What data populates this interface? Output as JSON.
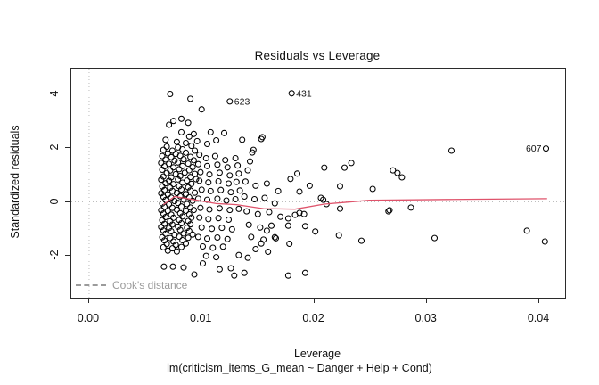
{
  "colors": {
    "point_stroke": "#000000",
    "smooth_line": "#DF536B",
    "ref_line": "#bdbdbd",
    "legend_gray": "#9b9b9b",
    "axis": "#2b2b2b"
  },
  "legend": {
    "label": "Cook's distance"
  },
  "chart_data": {
    "type": "scatter",
    "title": "Residuals vs Leverage",
    "xlabel": "Leverage",
    "sublabel": "lm(criticism_items_G_mean ~ Danger + Help + Cond)",
    "ylabel": "Standardized residuals",
    "xlim": [
      -0.00158,
      0.0423
    ],
    "ylim": [
      -3.55,
      4.94
    ],
    "x_ticks": [
      0,
      0.01,
      0.02,
      0.03,
      0.04
    ],
    "x_tick_labels": [
      "0.00",
      "0.01",
      "0.02",
      "0.03",
      "0.04"
    ],
    "y_ticks": [
      -2,
      0,
      2,
      4
    ],
    "y_tick_labels": [
      "-2",
      "0",
      "2",
      "4"
    ],
    "grid": false,
    "legend_position": "bottom-left-inside",
    "ref_lines": {
      "h": 0,
      "v": 0
    },
    "smooth_line": {
      "name": "loess-smooth",
      "points": [
        [
          0.0066,
          -0.1
        ],
        [
          0.0076,
          0.2
        ],
        [
          0.0092,
          0.09
        ],
        [
          0.0113,
          -0.06
        ],
        [
          0.0131,
          -0.1
        ],
        [
          0.0155,
          -0.25
        ],
        [
          0.0183,
          -0.27
        ],
        [
          0.0209,
          -0.08
        ],
        [
          0.0249,
          0.06
        ],
        [
          0.0318,
          0.09
        ],
        [
          0.0407,
          0.12
        ]
      ]
    },
    "labeled_points": [
      {
        "id": "431",
        "x": 0.018,
        "y": 4.02,
        "label_side": "right"
      },
      {
        "id": "623",
        "x": 0.0125,
        "y": 3.72,
        "label_side": "right"
      },
      {
        "id": "607",
        "x": 0.0406,
        "y": 1.98,
        "label_side": "left"
      }
    ],
    "points": [
      [
        0.0072,
        4.0
      ],
      [
        0.009,
        3.82
      ],
      [
        0.01,
        3.43
      ],
      [
        0.0075,
        3.0
      ],
      [
        0.0082,
        3.08
      ],
      [
        0.0088,
        2.93
      ],
      [
        0.0071,
        2.86
      ],
      [
        0.0082,
        2.58
      ],
      [
        0.0089,
        2.42
      ],
      [
        0.0093,
        2.52
      ],
      [
        0.0108,
        2.58
      ],
      [
        0.012,
        2.55
      ],
      [
        0.0068,
        2.3
      ],
      [
        0.0078,
        2.22
      ],
      [
        0.0086,
        2.18
      ],
      [
        0.0096,
        2.25
      ],
      [
        0.0105,
        2.15
      ],
      [
        0.0113,
        2.28
      ],
      [
        0.0136,
        2.3
      ],
      [
        0.0153,
        2.33
      ],
      [
        0.0154,
        2.4
      ],
      [
        0.0146,
        1.93
      ],
      [
        0.0145,
        1.83
      ],
      [
        0.0143,
        1.5
      ],
      [
        0.0141,
        1.17
      ],
      [
        0.0069,
        2.05
      ],
      [
        0.0079,
        2.02
      ],
      [
        0.0091,
        2.08
      ],
      [
        0.0066,
        1.93
      ],
      [
        0.0074,
        1.9
      ],
      [
        0.0083,
        1.95
      ],
      [
        0.0094,
        1.9
      ],
      [
        0.007,
        1.8
      ],
      [
        0.0077,
        1.78
      ],
      [
        0.0086,
        1.82
      ],
      [
        0.0065,
        1.7
      ],
      [
        0.0073,
        1.66
      ],
      [
        0.0081,
        1.71
      ],
      [
        0.009,
        1.67
      ],
      [
        0.0068,
        1.57
      ],
      [
        0.0076,
        1.53
      ],
      [
        0.0084,
        1.58
      ],
      [
        0.0093,
        1.54
      ],
      [
        0.0064,
        1.44
      ],
      [
        0.0071,
        1.41
      ],
      [
        0.0079,
        1.46
      ],
      [
        0.0088,
        1.42
      ],
      [
        0.0067,
        1.32
      ],
      [
        0.0075,
        1.28
      ],
      [
        0.0083,
        1.33
      ],
      [
        0.0092,
        1.29
      ],
      [
        0.0065,
        1.19
      ],
      [
        0.0072,
        1.16
      ],
      [
        0.008,
        1.21
      ],
      [
        0.0089,
        1.17
      ],
      [
        0.0069,
        1.07
      ],
      [
        0.0077,
        1.03
      ],
      [
        0.0085,
        1.08
      ],
      [
        0.0094,
        1.04
      ],
      [
        0.0066,
        0.94
      ],
      [
        0.0073,
        0.91
      ],
      [
        0.0081,
        0.96
      ],
      [
        0.009,
        0.92
      ],
      [
        0.0064,
        0.82
      ],
      [
        0.0071,
        0.78
      ],
      [
        0.0079,
        0.83
      ],
      [
        0.0087,
        0.79
      ],
      [
        0.0095,
        0.84
      ],
      [
        0.0068,
        0.69
      ],
      [
        0.0075,
        0.66
      ],
      [
        0.0083,
        0.71
      ],
      [
        0.0091,
        0.67
      ],
      [
        0.0065,
        0.57
      ],
      [
        0.0072,
        0.53
      ],
      [
        0.008,
        0.58
      ],
      [
        0.0088,
        0.54
      ],
      [
        0.0067,
        0.44
      ],
      [
        0.0074,
        0.41
      ],
      [
        0.0082,
        0.46
      ],
      [
        0.009,
        0.42
      ],
      [
        0.0064,
        0.32
      ],
      [
        0.007,
        0.28
      ],
      [
        0.0078,
        0.33
      ],
      [
        0.0086,
        0.29
      ],
      [
        0.0094,
        0.34
      ],
      [
        0.0066,
        0.19
      ],
      [
        0.0073,
        0.16
      ],
      [
        0.0081,
        0.21
      ],
      [
        0.0089,
        0.17
      ],
      [
        0.0068,
        0.07
      ],
      [
        0.0076,
        0.03
      ],
      [
        0.0084,
        0.08
      ],
      [
        0.0092,
        0.04
      ],
      [
        0.0065,
        -0.06
      ],
      [
        0.0071,
        -0.09
      ],
      [
        0.0079,
        -0.04
      ],
      [
        0.0087,
        -0.08
      ],
      [
        0.0067,
        -0.18
      ],
      [
        0.0074,
        -0.22
      ],
      [
        0.0082,
        -0.17
      ],
      [
        0.009,
        -0.21
      ],
      [
        0.0064,
        -0.31
      ],
      [
        0.007,
        -0.34
      ],
      [
        0.0078,
        -0.29
      ],
      [
        0.0086,
        -0.33
      ],
      [
        0.0093,
        -0.3
      ],
      [
        0.0066,
        -0.43
      ],
      [
        0.0073,
        -0.47
      ],
      [
        0.0081,
        -0.42
      ],
      [
        0.0089,
        -0.46
      ],
      [
        0.0068,
        -0.56
      ],
      [
        0.0075,
        -0.59
      ],
      [
        0.0083,
        -0.54
      ],
      [
        0.0091,
        -0.58
      ],
      [
        0.0065,
        -0.68
      ],
      [
        0.0072,
        -0.72
      ],
      [
        0.008,
        -0.67
      ],
      [
        0.0088,
        -0.71
      ],
      [
        0.0067,
        -0.81
      ],
      [
        0.0074,
        -0.84
      ],
      [
        0.0082,
        -0.79
      ],
      [
        0.009,
        -0.83
      ],
      [
        0.0064,
        -0.93
      ],
      [
        0.0071,
        -0.97
      ],
      [
        0.0079,
        -0.92
      ],
      [
        0.0087,
        -0.96
      ],
      [
        0.0066,
        -1.06
      ],
      [
        0.0073,
        -1.09
      ],
      [
        0.0081,
        -1.04
      ],
      [
        0.0089,
        -1.08
      ],
      [
        0.0068,
        -1.18
      ],
      [
        0.0076,
        -1.22
      ],
      [
        0.0084,
        -1.17
      ],
      [
        0.0092,
        -1.21
      ],
      [
        0.0065,
        -1.31
      ],
      [
        0.0072,
        -1.34
      ],
      [
        0.008,
        -1.29
      ],
      [
        0.0088,
        -1.33
      ],
      [
        0.0067,
        -1.43
      ],
      [
        0.0075,
        -1.47
      ],
      [
        0.0083,
        -1.42
      ],
      [
        0.0069,
        -1.56
      ],
      [
        0.0077,
        -1.59
      ],
      [
        0.0086,
        -1.54
      ],
      [
        0.0066,
        -1.68
      ],
      [
        0.0074,
        -1.72
      ],
      [
        0.0082,
        -1.67
      ],
      [
        0.007,
        -1.81
      ],
      [
        0.0078,
        -1.84
      ],
      [
        0.0098,
        1.75
      ],
      [
        0.0104,
        1.62
      ],
      [
        0.0112,
        1.7
      ],
      [
        0.0121,
        1.55
      ],
      [
        0.013,
        1.62
      ],
      [
        0.0097,
        1.4
      ],
      [
        0.0105,
        1.33
      ],
      [
        0.0114,
        1.38
      ],
      [
        0.0123,
        1.28
      ],
      [
        0.0132,
        1.35
      ],
      [
        0.0099,
        1.1
      ],
      [
        0.0107,
        1.02
      ],
      [
        0.0116,
        1.08
      ],
      [
        0.0125,
        0.98
      ],
      [
        0.0133,
        1.05
      ],
      [
        0.0098,
        0.78
      ],
      [
        0.0106,
        0.72
      ],
      [
        0.0115,
        0.76
      ],
      [
        0.0124,
        0.68
      ],
      [
        0.0131,
        0.74
      ],
      [
        0.01,
        0.45
      ],
      [
        0.0108,
        0.4
      ],
      [
        0.0117,
        0.44
      ],
      [
        0.0126,
        0.36
      ],
      [
        0.0134,
        0.42
      ],
      [
        0.0097,
        0.12
      ],
      [
        0.0105,
        0.08
      ],
      [
        0.0114,
        0.12
      ],
      [
        0.0122,
        0.05
      ],
      [
        0.013,
        0.1
      ],
      [
        0.0099,
        -0.22
      ],
      [
        0.0107,
        -0.28
      ],
      [
        0.0116,
        -0.24
      ],
      [
        0.0125,
        -0.3
      ],
      [
        0.0133,
        -0.26
      ],
      [
        0.0098,
        -0.58
      ],
      [
        0.0106,
        -0.64
      ],
      [
        0.0115,
        -0.6
      ],
      [
        0.0124,
        -0.66
      ],
      [
        0.01,
        -0.95
      ],
      [
        0.0109,
        -1.0
      ],
      [
        0.0118,
        -0.96
      ],
      [
        0.0127,
        -1.02
      ],
      [
        0.0097,
        -1.3
      ],
      [
        0.0105,
        -1.36
      ],
      [
        0.0114,
        -1.32
      ],
      [
        0.0123,
        -1.38
      ],
      [
        0.0101,
        -1.65
      ],
      [
        0.011,
        -1.7
      ],
      [
        0.0119,
        -1.66
      ],
      [
        0.0104,
        -2.0
      ],
      [
        0.0113,
        -2.05
      ],
      [
        0.0139,
        0.75
      ],
      [
        0.0148,
        0.6
      ],
      [
        0.0158,
        0.68
      ],
      [
        0.0168,
        0.4
      ],
      [
        0.0138,
        0.2
      ],
      [
        0.0147,
        0.1
      ],
      [
        0.0156,
        0.15
      ],
      [
        0.0165,
        -0.05
      ],
      [
        0.014,
        -0.35
      ],
      [
        0.015,
        -0.45
      ],
      [
        0.016,
        -0.38
      ],
      [
        0.017,
        -0.55
      ],
      [
        0.0142,
        -0.85
      ],
      [
        0.0152,
        -0.95
      ],
      [
        0.0162,
        -0.88
      ],
      [
        0.0144,
        -1.3
      ],
      [
        0.0155,
        -1.4
      ],
      [
        0.0166,
        -1.35
      ],
      [
        0.0148,
        -1.75
      ],
      [
        0.0159,
        -1.85
      ],
      [
        0.0133,
        -1.97
      ],
      [
        0.0141,
        -2.07
      ],
      [
        0.0126,
        -2.46
      ],
      [
        0.0138,
        -2.63
      ],
      [
        0.0153,
        -1.54
      ],
      [
        0.0158,
        -1.07
      ],
      [
        0.0165,
        -1.31
      ],
      [
        0.0177,
        -0.88
      ],
      [
        0.0177,
        -0.61
      ],
      [
        0.0187,
        -0.41
      ],
      [
        0.0179,
        0.85
      ],
      [
        0.0185,
        1.05
      ],
      [
        0.0196,
        0.6
      ],
      [
        0.0192,
        -0.9
      ],
      [
        0.0201,
        -1.1
      ],
      [
        0.0178,
        -1.55
      ],
      [
        0.0209,
        1.27
      ],
      [
        0.0227,
        1.27
      ],
      [
        0.0233,
        1.44
      ],
      [
        0.027,
        1.17
      ],
      [
        0.0274,
        1.07
      ],
      [
        0.0278,
        0.91
      ],
      [
        0.0322,
        1.9
      ],
      [
        0.0187,
        0.38
      ],
      [
        0.0206,
        0.15
      ],
      [
        0.0208,
        0.08
      ],
      [
        0.0211,
        -0.08
      ],
      [
        0.0223,
        0.58
      ],
      [
        0.0223,
        -0.25
      ],
      [
        0.0252,
        0.48
      ],
      [
        0.0267,
        -0.31
      ],
      [
        0.0286,
        -0.21
      ],
      [
        0.0266,
        -0.35
      ],
      [
        0.0183,
        -0.48
      ],
      [
        0.0191,
        -0.45
      ],
      [
        0.0222,
        -1.24
      ],
      [
        0.0242,
        -1.44
      ],
      [
        0.0307,
        -1.34
      ],
      [
        0.0389,
        -1.07
      ],
      [
        0.0405,
        -1.47
      ],
      [
        0.00665,
        -2.4
      ],
      [
        0.00745,
        -2.4
      ],
      [
        0.0084,
        -2.43
      ],
      [
        0.00935,
        -2.69
      ],
      [
        0.0116,
        -2.5
      ],
      [
        0.0129,
        -2.73
      ],
      [
        0.0177,
        -2.73
      ],
      [
        0.0192,
        -2.63
      ],
      [
        0.0101,
        -2.28
      ]
    ]
  }
}
